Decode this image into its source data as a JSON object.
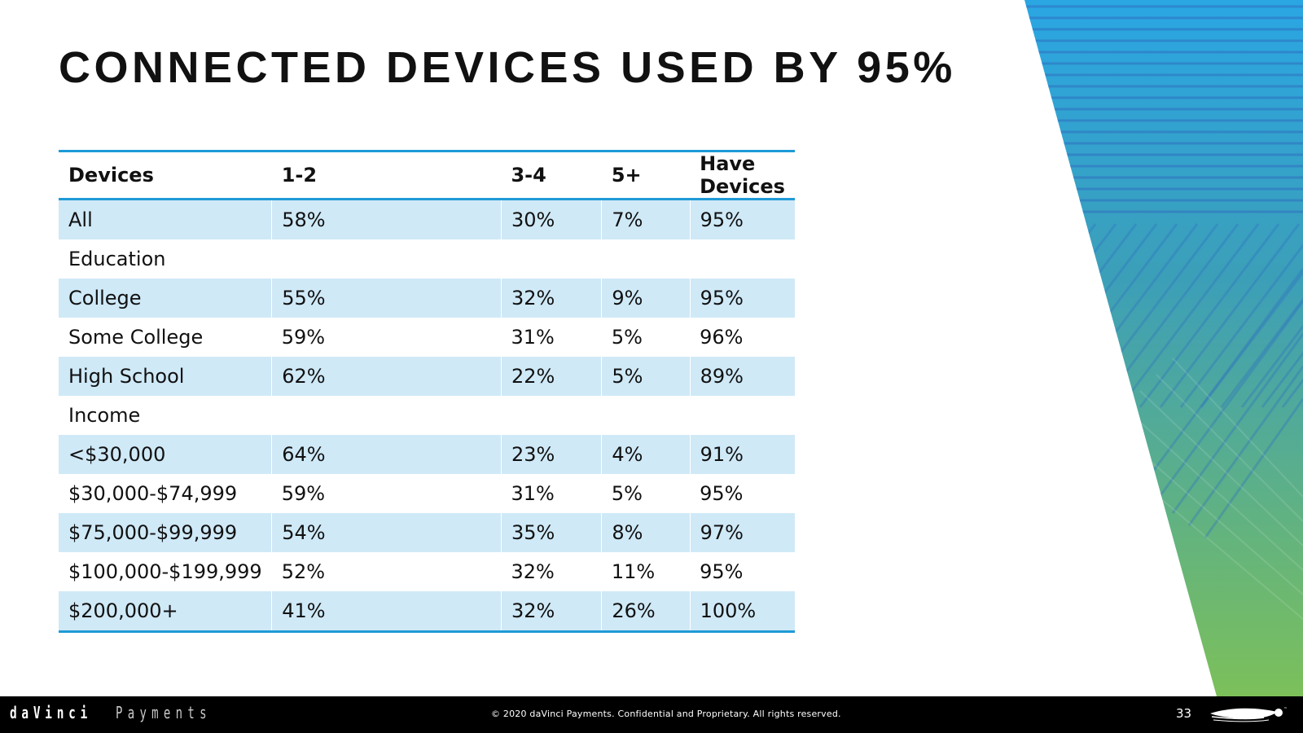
{
  "slide": {
    "title": "CONNECTED DEVICES USED BY 95%",
    "page_number": "33"
  },
  "table": {
    "headers": [
      "Devices",
      "1-2",
      "3-4",
      "5+",
      "Have Devices"
    ],
    "rows": [
      {
        "label": "All",
        "c1": "58%",
        "c2": "30%",
        "c3": "7%",
        "c4": "95%",
        "band": true
      },
      {
        "label": "Education",
        "c1": "",
        "c2": "",
        "c3": "",
        "c4": "",
        "band": false
      },
      {
        "label": "College",
        "c1": "55%",
        "c2": "32%",
        "c3": "9%",
        "c4": "95%",
        "band": true
      },
      {
        "label": "Some College",
        "c1": "59%",
        "c2": "31%",
        "c3": "5%",
        "c4": "96%",
        "band": false
      },
      {
        "label": "High School",
        "c1": "62%",
        "c2": "22%",
        "c3": "5%",
        "c4": "89%",
        "band": true
      },
      {
        "label": "Income",
        "c1": "",
        "c2": "",
        "c3": "",
        "c4": "",
        "band": false
      },
      {
        "label": "<$30,000",
        "c1": "64%",
        "c2": "23%",
        "c3": "4%",
        "c4": "91%",
        "band": true
      },
      {
        "label": "$30,000-$74,999",
        "c1": "59%",
        "c2": "31%",
        "c3": "5%",
        "c4": "95%",
        "band": false
      },
      {
        "label": "$75,000-$99,999",
        "c1": "54%",
        "c2": "35%",
        "c3": "8%",
        "c4": "97%",
        "band": true
      },
      {
        "label": "$100,000-$199,999",
        "c1": "52%",
        "c2": "32%",
        "c3": "11%",
        "c4": "95%",
        "band": false
      },
      {
        "label": "$200,000+",
        "c1": "41%",
        "c2": "32%",
        "c3": "26%",
        "c4": "100%",
        "band": true
      }
    ]
  },
  "footer": {
    "logo_bold": "daVinci",
    "logo_light": "Payments",
    "copyright": "© 2020 daVinci Payments.  Confidential and Proprietary.  All rights reserved."
  },
  "colors": {
    "accent": "#1e9ad6",
    "band": "#cfe9f7",
    "gradient_top": "#2aa6e3",
    "gradient_bottom": "#7cc05a"
  }
}
